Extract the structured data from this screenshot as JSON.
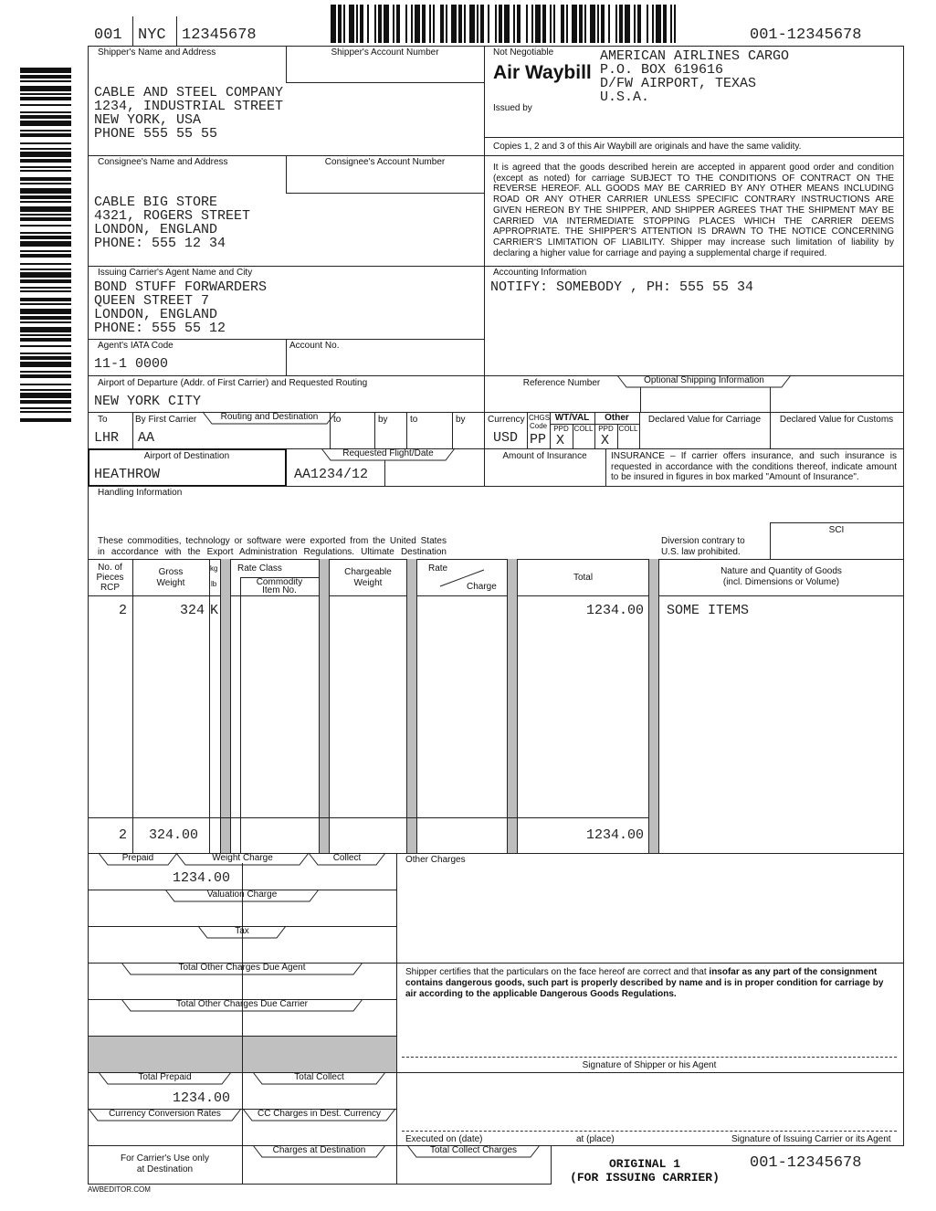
{
  "header": {
    "airline_prefix": "001",
    "origin_code": "NYC",
    "serial_number": "12345678",
    "awb_number": "001-12345678"
  },
  "shipper": {
    "label": "Shipper's Name and Address",
    "account_label": "Shipper's Account Number",
    "lines": [
      "CABLE AND STEEL COMPANY",
      "1234, INDUSTRIAL STREET",
      "NEW YORK, USA",
      "PHONE 555 55 55"
    ]
  },
  "issuer": {
    "not_negotiable": "Not Negotiable",
    "title": "Air Waybill",
    "issued_by": "Issued by",
    "lines": [
      "AMERICAN AIRLINES CARGO",
      "P.O. BOX 619616",
      "D/FW AIRPORT, TEXAS",
      "U.S.A."
    ],
    "copies_note": "Copies 1, 2 and 3 of this Air Waybill are originals and have the same validity.",
    "contract_text": "It is agreed that the goods described herein are accepted in apparent good order and condition (except as noted) for carriage SUBJECT TO THE CONDITIONS OF CONTRACT ON THE REVERSE HEREOF. ALL GOODS MAY BE CARRIED BY ANY OTHER MEANS INCLUDING ROAD OR ANY OTHER CARRIER UNLESS SPECIFIC CONTRARY INSTRUCTIONS ARE GIVEN HEREON BY THE SHIPPER, AND SHIPPER AGREES THAT THE SHIPMENT MAY BE CARRIED VIA INTERMEDIATE STOPPING PLACES WHICH THE CARRIER DEEMS APPROPRIATE. THE SHIPPER'S ATTENTION IS DRAWN TO THE NOTICE CONCERNING CARRIER'S LIMITATION OF LIABILITY. Shipper may increase such limitation of liability by declaring a higher value for carriage and paying a supplemental charge if required."
  },
  "consignee": {
    "label": "Consignee's Name and Address",
    "account_label": "Consignee's Account Number",
    "lines": [
      "CABLE BIG STORE",
      "4321, ROGERS STREET",
      "LONDON, ENGLAND",
      "PHONE: 555 12 34"
    ]
  },
  "agent": {
    "label": "Issuing Carrier's Agent Name and City",
    "lines": [
      "BOND STUFF FORWARDERS",
      "QUEEN STREET 7",
      "LONDON, ENGLAND",
      "PHONE: 555 55 12"
    ],
    "iata_label": "Agent's IATA Code",
    "iata_code": "11-1 0000",
    "account_label": "Account No."
  },
  "accounting": {
    "label": "Accounting Information",
    "value": "NOTIFY: SOMEBODY , PH: 555 55 34"
  },
  "departure": {
    "label": "Airport of Departure (Addr. of First Carrier) and Requested Routing",
    "value": "NEW YORK CITY"
  },
  "reference": {
    "label": "Reference Number",
    "optional_label": "Optional Shipping Information"
  },
  "routing": {
    "to_label": "To",
    "to_value": "LHR",
    "first_carrier_label": "By First Carrier",
    "routing_label": "Routing and Destination",
    "first_carrier_value": "AA",
    "to2_label": "to",
    "by2_label": "by",
    "to3_label": "to",
    "by3_label": "by"
  },
  "charges_codes": {
    "currency_label": "Currency",
    "currency_value": "USD",
    "chgs_label": "CHGS",
    "code_label": "Code",
    "chgs_value": "PP",
    "wtval_label": "WT/VAL",
    "other_label": "Other",
    "ppd_label": "PPD",
    "coll_label": "COLL",
    "wtval_ppd": "X",
    "other_ppd": "X",
    "declared_carriage_label": "Declared Value for Carriage",
    "declared_customs_label": "Declared Value for Customs"
  },
  "destination": {
    "label": "Airport of Destination",
    "value": "HEATHROW",
    "flight_label": "Requested Flight/Date",
    "flight_value": "AA1234/12"
  },
  "insurance": {
    "label": "Amount of Insurance",
    "text": "INSURANCE – If carrier offers insurance, and such insurance is requested in accordance with the conditions thereof, indicate amount to be insured in figures in box marked \"Amount of Insurance\"."
  },
  "handling": {
    "label": "Handling Information",
    "export_text": [
      "These commodities, technology or software were exported from the United States",
      "in accordance with the Export Administration Regulations. Ultimate Destination"
    ],
    "diversion_text": [
      "Diversion contrary to",
      "U.S. law prohibited."
    ],
    "sci_label": "SCI"
  },
  "goods_table": {
    "headers": {
      "pieces": [
        "No. of",
        "Pieces",
        "RCP"
      ],
      "gross_weight": [
        "Gross",
        "Weight"
      ],
      "kg": "kg",
      "lb": "lb",
      "rate_class": "Rate Class",
      "commodity": [
        "Commodity",
        "Item No."
      ],
      "chargeable_weight": [
        "Chargeable",
        "Weight"
      ],
      "rate": "Rate",
      "charge": "Charge",
      "total": "Total",
      "nature": [
        "Nature and Quantity of Goods",
        "(incl. Dimensions or Volume)"
      ]
    },
    "row": {
      "pieces": "2",
      "gross_weight": "324",
      "unit": "K",
      "total": "1234.00",
      "nature": "SOME ITEMS"
    },
    "totals": {
      "pieces": "2",
      "gross_weight": "324.00",
      "total": "1234.00"
    }
  },
  "charges": {
    "prepaid_label": "Prepaid",
    "weight_charge_label": "Weight Charge",
    "collect_label": "Collect",
    "weight_charge_prepaid": "1234.00",
    "valuation_label": "Valuation Charge",
    "tax_label": "Tax",
    "due_agent_label": "Total Other Charges Due Agent",
    "due_carrier_label": "Total Other Charges Due Carrier",
    "total_prepaid_label": "Total Prepaid",
    "total_collect_label": "Total Collect",
    "total_prepaid": "1234.00",
    "conversion_label": "Currency Conversion Rates",
    "cc_charges_label": "CC Charges in Dest. Currency",
    "carrier_use_label": [
      "For Carrier's Use only",
      "at Destination"
    ],
    "charges_dest_label": "Charges at Destination",
    "total_collect_charges_label": "Total Collect Charges",
    "other_charges_label": "Other Charges"
  },
  "certification": {
    "text_plain": "Shipper certifies that the particulars on the face hereof are correct and that ",
    "text_bold": "insofar as any part of the consignment contains dangerous goods, such part is properly described by name and is in proper condition for carriage by air according to the applicable Dangerous Goods Regulations.",
    "shipper_signature_label": "Signature of Shipper or his Agent",
    "executed_label": "Executed on (date)",
    "place_label": "at (place)",
    "carrier_signature_label": "Signature of Issuing Carrier or its Agent"
  },
  "footer": {
    "copy_label": [
      "ORIGINAL 1",
      "(FOR ISSUING CARRIER)"
    ],
    "awb_number": "001-12345678",
    "watermark": "AWBEDITOR.COM"
  }
}
